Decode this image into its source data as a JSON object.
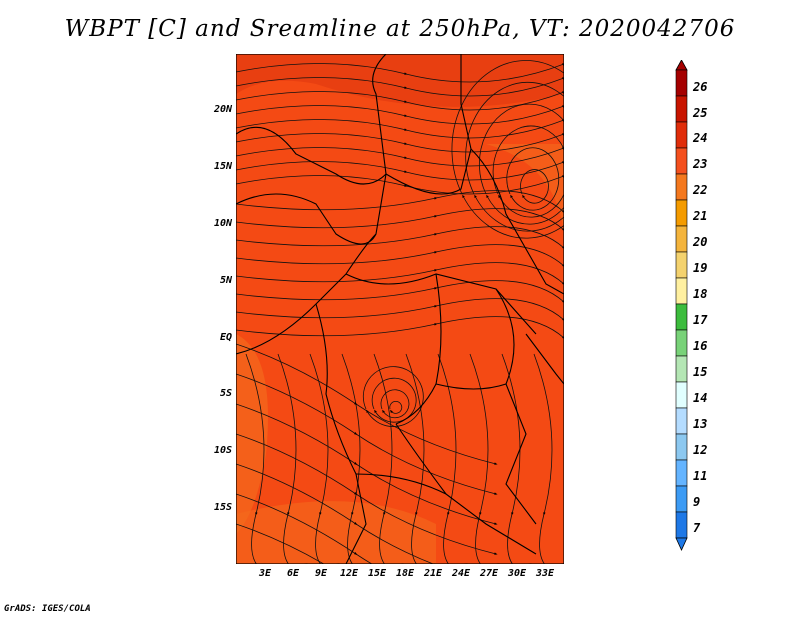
{
  "title": "WBPT [C] and Sreamline at 250hPa, VT: 2020042706",
  "footer": "GrADS: IGES/COLA",
  "map": {
    "lat_labels": [
      "20N",
      "15N",
      "10N",
      "5N",
      "EQ",
      "5S",
      "10S",
      "15S"
    ],
    "lon_labels": [
      "3E",
      "6E",
      "9E",
      "12E",
      "15E",
      "18E",
      "21E",
      "24E",
      "27E",
      "30E",
      "33E"
    ],
    "fill_colors": {
      "base": "#f44a14",
      "dark": "#e03010",
      "light": "#f46a1c"
    }
  },
  "colorbar": {
    "labels": [
      "26",
      "25",
      "24",
      "23",
      "22",
      "21",
      "20",
      "19",
      "18",
      "17",
      "16",
      "15",
      "14",
      "13",
      "12",
      "11",
      "9",
      "7"
    ],
    "colors": [
      "#a50000",
      "#c81400",
      "#e02d0a",
      "#f4501e",
      "#f4781e",
      "#f49b00",
      "#f4b43c",
      "#f4d26e",
      "#fff0a0",
      "#3cbc3d",
      "#78d278",
      "#b4e6b4",
      "#e1ffff",
      "#b4dcff",
      "#8cc8f0",
      "#64b4ff",
      "#3c9bf4",
      "#1e78e6"
    ]
  }
}
